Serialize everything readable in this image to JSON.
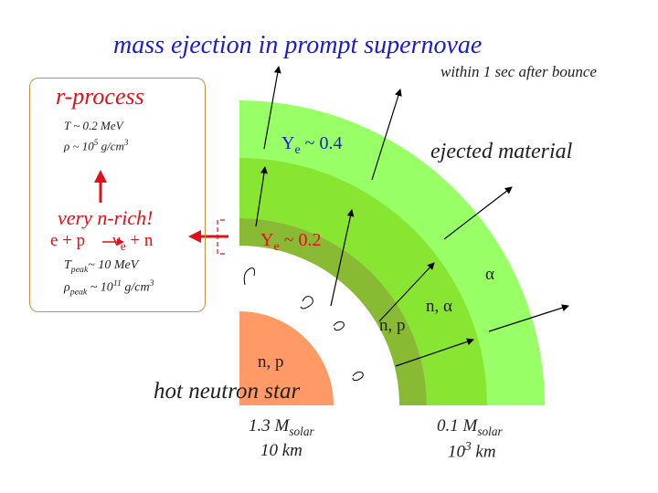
{
  "title": "mass ejection in prompt supernovae",
  "subtitle": "within 1 sec after bounce",
  "colors": {
    "title": "#1a1ad8",
    "accent_red": "#e0101a",
    "outer_shell": "#99ff66",
    "middle_shell": "#88e633",
    "inner_shell": "#88bb33",
    "neutron_star": "#ff9966",
    "box_border": "#c89040"
  },
  "box": {
    "heading": "r-process",
    "T": "T ~ 0.2 MeV",
    "rho_base": "ρ ~ 10",
    "rho_exp": "5",
    "rho_unit": " g/cm",
    "rho_unit_exp": "3",
    "very_n_rich": "very n-rich!",
    "reaction_left": "e + p",
    "reaction_nu": "ν",
    "reaction_nu_sub": "e",
    "reaction_right": " + n",
    "tpeak_base": "T",
    "tpeak_sub": "peak",
    "tpeak_rest": "~ 10 MeV",
    "rhopeak_base": "ρ",
    "rhopeak_sub": "peak",
    "rhopeak_rest": " ~ 10",
    "rhopeak_exp": "11",
    "rhopeak_unit": " g/cm",
    "rhopeak_unit_exp": "3"
  },
  "labels": {
    "ye04_Y": "Y",
    "ye04_sub": "e",
    "ye04_rest": " ~ 0.4",
    "ye02_Y": "Y",
    "ye02_sub": "e",
    "ye02_rest": " ~ 0.2",
    "ejected": "ejected material",
    "alpha": "α",
    "n_alpha": "n, α",
    "n_p_shell": "n, p",
    "n_p_core": "n, p",
    "hot_ns": "hot neutron star",
    "mass1_a": "1.3 M",
    "mass1_sub": "solar",
    "radius1": "10 km",
    "mass2_a": "0.1 M",
    "mass2_sub": "solar",
    "radius2_a": "10",
    "radius2_exp": "3",
    "radius2_b": " km"
  }
}
